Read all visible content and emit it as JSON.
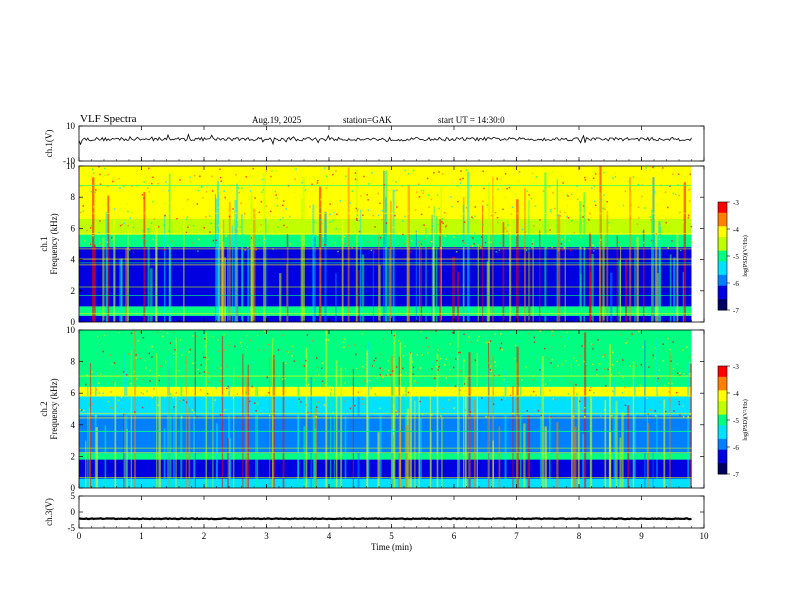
{
  "header": {
    "title": "VLF  Spectra",
    "date": "Aug.19, 2025",
    "station": "station=GAK",
    "start_ut": "start  UT  =   14:30:0"
  },
  "colors": {
    "colormap": [
      "#ffffff",
      "#000060",
      "#0000e0",
      "#0080ff",
      "#00e0ff",
      "#00ff80",
      "#c0ff00",
      "#ffff00",
      "#ff8000",
      "#ff0000"
    ]
  },
  "chart_data": [
    {
      "type": "line",
      "id": "ch1-waveform",
      "ylabel": "ch.1(V)",
      "ylim": [
        -10,
        10
      ],
      "yticks": [
        10,
        -10
      ],
      "x_range": [
        0,
        9.8
      ],
      "baseline": 2.5
    },
    {
      "type": "heatmap",
      "id": "ch1-spectrogram",
      "ylabel_top": "ch.1",
      "ylabel": "Frequency  (kHz)",
      "ylim": [
        0,
        10
      ],
      "yticks": [
        0,
        2,
        4,
        6,
        8,
        10
      ],
      "x_range": [
        0,
        9.8
      ],
      "bands": [
        {
          "from": 0,
          "to": 0.4,
          "level": -6.4
        },
        {
          "from": 0.4,
          "to": 1.0,
          "level": -5.1
        },
        {
          "from": 1.0,
          "to": 4.8,
          "level": -6.4
        },
        {
          "from": 4.8,
          "to": 5.6,
          "level": -5.0
        },
        {
          "from": 5.6,
          "to": 6.6,
          "level": -4.5
        },
        {
          "from": 6.6,
          "to": 10,
          "level": -3.9
        }
      ],
      "colorbar": {
        "label": "log(PSD)(V²/Hz)",
        "range": [
          -7,
          -3
        ],
        "ticks": [
          -3,
          -4,
          -5,
          -6,
          -7
        ]
      }
    },
    {
      "type": "heatmap",
      "id": "ch2-spectrogram",
      "ylabel_top": "ch.2",
      "ylabel": "Frequency  (kHz)",
      "ylim": [
        0,
        10
      ],
      "yticks": [
        0,
        2,
        4,
        6,
        8,
        10
      ],
      "x_range": [
        0,
        9.8
      ],
      "bands": [
        {
          "from": 0,
          "to": 0.6,
          "level": -5.3
        },
        {
          "from": 0.6,
          "to": 1.8,
          "level": -6.5
        },
        {
          "from": 1.8,
          "to": 2.2,
          "level": -5.1
        },
        {
          "from": 2.2,
          "to": 4.6,
          "level": -6.0
        },
        {
          "from": 4.6,
          "to": 5.8,
          "level": -5.4
        },
        {
          "from": 5.8,
          "to": 6.4,
          "level": -4.3
        },
        {
          "from": 6.4,
          "to": 10,
          "level": -5.0
        }
      ],
      "colorbar": {
        "label": "log(PSD)(V²/Hz)",
        "range": [
          -7,
          -3
        ],
        "ticks": [
          -3,
          -4,
          -5,
          -6,
          -7
        ]
      }
    },
    {
      "type": "line",
      "id": "ch3-waveform",
      "ylabel": "ch.3(V)",
      "ylim": [
        -5,
        5
      ],
      "yticks": [
        5,
        0,
        -5
      ],
      "x_range": [
        0,
        9.8
      ],
      "baseline": -2.1
    }
  ],
  "x_axis": {
    "label": "Time  (min)",
    "range": [
      0,
      10
    ],
    "ticks": [
      0,
      1,
      2,
      3,
      4,
      5,
      6,
      7,
      8,
      9,
      10
    ]
  }
}
